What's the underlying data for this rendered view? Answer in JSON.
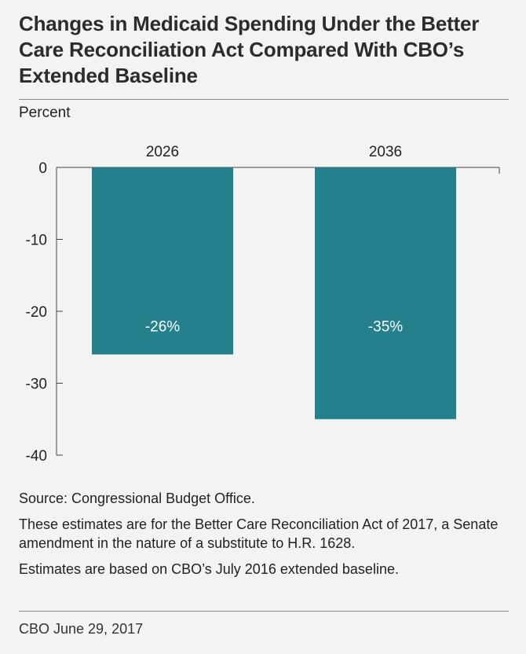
{
  "header": {
    "title": "Changes in Medicaid Spending Under the Better Care Reconciliation Act Compared With CBO’s Extended Baseline"
  },
  "chart_data": {
    "type": "bar",
    "title": "Changes in Medicaid Spending Under the Better Care Reconciliation Act Compared With CBO’s Extended Baseline",
    "ylabel": "Percent",
    "xlabel": "",
    "categories": [
      "2026",
      "2036"
    ],
    "values": [
      -26,
      -35
    ],
    "data_labels": [
      "-26%",
      "-35%"
    ],
    "ylim": [
      -40,
      0
    ],
    "yticks": [
      0,
      -10,
      -20,
      -30,
      -40
    ],
    "ytick_labels": [
      "0",
      "-10",
      "-20",
      "-30",
      "-40"
    ],
    "category_axis_position": "top",
    "grid": false,
    "bar_color": "#23808c",
    "label_color": "#ffffff"
  },
  "notes": {
    "source": "Source: Congressional Budget Office.",
    "note1": "These estimates are for the Better Care Reconciliation Act of 2017, a Senate amendment in the nature of a substitute to H.R. 1628.",
    "note2": "Estimates are based on CBO’s July 2016 extended baseline."
  },
  "footer": {
    "credit": "CBO June 29, 2017"
  }
}
